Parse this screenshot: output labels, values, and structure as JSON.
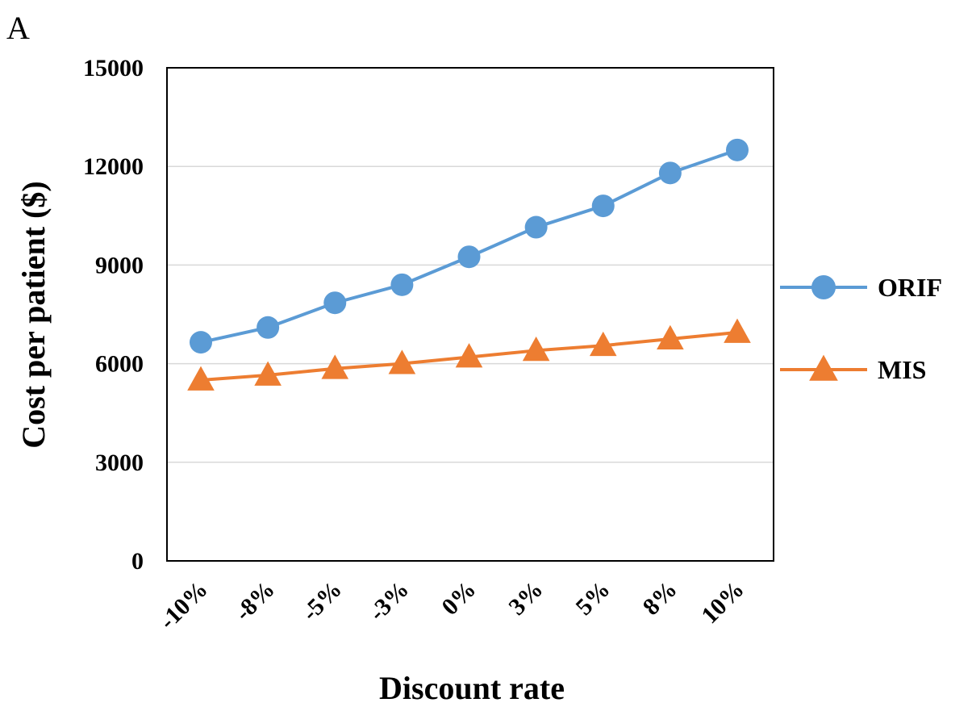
{
  "panel_label": "A",
  "chart_data": {
    "type": "line",
    "categories": [
      "-10%",
      "-8%",
      "-5%",
      "-3%",
      "0%",
      "3%",
      "5%",
      "8%",
      "10%"
    ],
    "series": [
      {
        "name": "ORIF",
        "color": "#5b9bd5",
        "marker": "circle",
        "values": [
          6650,
          7100,
          7850,
          8400,
          9250,
          10150,
          10800,
          11800,
          12500
        ]
      },
      {
        "name": "MIS",
        "color": "#ed7d31",
        "marker": "triangle",
        "values": [
          5500,
          5650,
          5850,
          6000,
          6200,
          6400,
          6550,
          6750,
          6950
        ]
      }
    ],
    "xlabel": "Discount rate",
    "ylabel": "Cost per patient ($)",
    "ylim": [
      0,
      15000
    ],
    "yticks": [
      0,
      3000,
      6000,
      9000,
      12000,
      15000
    ],
    "grid": true,
    "legend": "right"
  }
}
